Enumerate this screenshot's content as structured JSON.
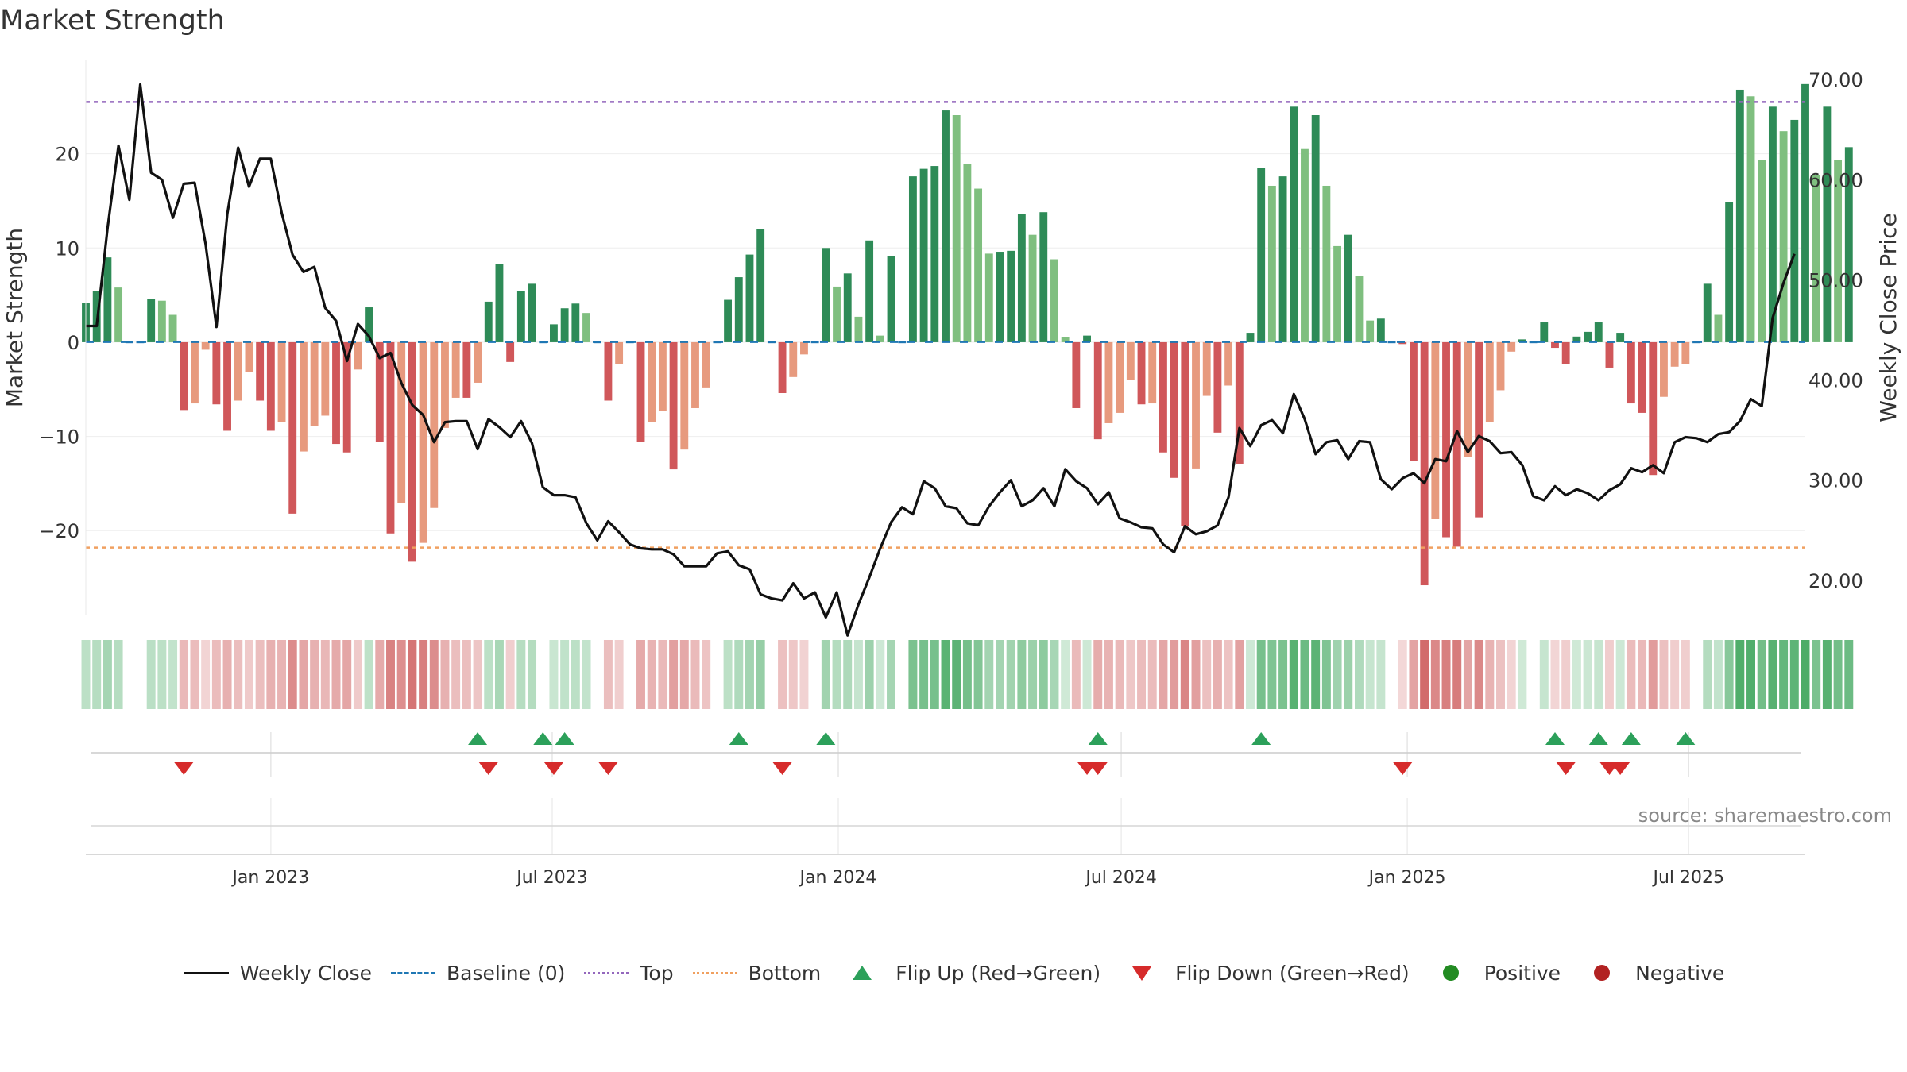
{
  "title": "Market Strength",
  "source": "source: sharemaestro.com",
  "colors": {
    "pos_dark": "#2e8b57",
    "pos_light": "#7fbf7f",
    "neg_dark": "#d0575a",
    "neg_light": "#e79a7e",
    "price_line": "#111111",
    "baseline": "#1f77b4",
    "top": "#9467bd",
    "bottom": "#f0a060",
    "flip_up": "#2ca05a",
    "flip_down": "#d62b2b",
    "positive": "#228b22",
    "negative": "#b22222",
    "heat_pos": "#2e9e4e",
    "heat_neg": "#c84a4a"
  },
  "legend": [
    {
      "key": "weekly_close",
      "label": "Weekly Close",
      "symbol": "line"
    },
    {
      "key": "baseline",
      "label": "Baseline (0)",
      "symbol": "dash"
    },
    {
      "key": "top",
      "label": "Top",
      "symbol": "dot-line"
    },
    {
      "key": "bottom",
      "label": "Bottom",
      "symbol": "dot-line"
    },
    {
      "key": "flip_up",
      "label": "Flip Up (Red→Green)",
      "symbol": "triangle-up"
    },
    {
      "key": "flip_down",
      "label": "Flip Down (Green→Red)",
      "symbol": "triangle-down"
    },
    {
      "key": "positive",
      "label": "Positive",
      "symbol": "circle"
    },
    {
      "key": "negative",
      "label": "Negative",
      "symbol": "circle"
    }
  ],
  "chart_data": {
    "type": "bar",
    "title": "Market Strength",
    "left_axis": {
      "label": "Market Strength",
      "range": [
        -29,
        30
      ],
      "ticks": [
        20,
        10,
        0,
        -10,
        -20
      ],
      "tick_labels": [
        "20",
        "10",
        "0",
        "−10",
        "−20"
      ]
    },
    "right_axis": {
      "label": "Weekly Close Price",
      "range": [
        16.5,
        72
      ],
      "ticks": [
        70,
        60,
        50,
        40,
        30,
        20
      ],
      "tick_labels": [
        "70.00",
        "60.00",
        "50.00",
        "40.00",
        "30.00",
        "20.00"
      ]
    },
    "x_axis": {
      "start": "2022-09-04",
      "end": "2025-09-14",
      "ticks": [
        "2023-01-01",
        "2023-07-01",
        "2024-01-01",
        "2024-07-01",
        "2025-01-01",
        "2025-07-01"
      ],
      "tick_labels": [
        "Jan 2023",
        "Jul 2023",
        "Jan 2024",
        "Jul 2024",
        "Jan 2025",
        "Jul 2025"
      ]
    },
    "top_level": 25.5,
    "bottom_level": -21.8,
    "baseline": 0,
    "series": [
      {
        "name": "Market Strength",
        "type": "bar",
        "first_week": "2022-09-04",
        "values": [
          4.2,
          5.4,
          9,
          5.8,
          0,
          0,
          4.6,
          4.4,
          2.9,
          -7.2,
          -6.5,
          -0.8,
          -6.6,
          -9.4,
          -6.2,
          -3.2,
          -6.2,
          -9.4,
          -8.5,
          -18.2,
          -11.6,
          -8.9,
          -7.8,
          -10.8,
          -11.7,
          -2.9,
          3.7,
          -10.6,
          -20.3,
          -17.1,
          -23.3,
          -21.3,
          -17.6,
          -9.1,
          -5.9,
          -5.9,
          -4.3,
          4.3,
          8.3,
          -2.1,
          5.4,
          6.2,
          0,
          1.9,
          3.6,
          4.1,
          3.1,
          0,
          -6.2,
          -2.3,
          0,
          -10.6,
          -8.5,
          -7.3,
          -13.5,
          -11.4,
          -7,
          -4.8,
          0,
          4.5,
          6.9,
          9.3,
          12,
          0,
          -5.4,
          -3.7,
          -1.3,
          0,
          10,
          5.9,
          7.3,
          2.7,
          10.8,
          0.7,
          9.1,
          0,
          17.6,
          18.4,
          18.7,
          24.6,
          24.1,
          18.9,
          16.3,
          9.4,
          9.6,
          9.7,
          13.6,
          11.4,
          13.8,
          8.8,
          0.5,
          -7,
          0.7,
          -10.3,
          -8.6,
          -7.5,
          -4,
          -6.6,
          -6.5,
          -11.7,
          -14.4,
          -19.5,
          -13.4,
          -5.7,
          -9.6,
          -4.6,
          -12.9,
          1,
          18.5,
          16.6,
          17.6,
          25,
          20.5,
          24.1,
          16.6,
          10.2,
          11.4,
          7,
          2.3,
          2.5,
          0,
          -0.2,
          -12.6,
          -25.8,
          -18.8,
          -20.7,
          -21.7,
          -12.2,
          -18.6,
          -8.5,
          -5.1,
          -1,
          0.3,
          0,
          2.1,
          -0.6,
          -2.3,
          0.6,
          1.1,
          2.1,
          -2.7,
          1,
          -6.5,
          -7.5,
          -14.1,
          -5.8,
          -2.6,
          -2.3,
          0,
          6.2,
          2.9,
          14.9,
          26.8,
          26.1,
          19.3,
          25,
          22.4,
          23.6,
          27.4,
          17.7,
          25,
          19.3,
          20.7
        ]
      },
      {
        "name": "Weekly Close",
        "type": "line",
        "first_week": "2022-09-04",
        "values": [
          45.4,
          45.4,
          55.2,
          63.4,
          58,
          69.5,
          60.7,
          60,
          56.2,
          59.6,
          59.7,
          53.6,
          45.3,
          56.6,
          63.2,
          59.3,
          62.1,
          62.1,
          56.7,
          52.5,
          50.8,
          51.3,
          47.2,
          45.9,
          41.9,
          45.6,
          44.4,
          42.2,
          42.7,
          39.7,
          37.5,
          36.5,
          33.8,
          35.8,
          35.9,
          35.9,
          33.1,
          36.1,
          35.3,
          34.3,
          35.9,
          33.7,
          29.3,
          28.5,
          28.5,
          28.3,
          25.7,
          24,
          25.9,
          24.8,
          23.6,
          23.2,
          23.1,
          23.1,
          22.6,
          21.4,
          21.4,
          21.4,
          22.7,
          22.9,
          21.5,
          21.1,
          18.6,
          18.2,
          18,
          19.7,
          18.2,
          18.8,
          16.3,
          18.8,
          14.5,
          17.6,
          20.3,
          23.2,
          25.8,
          27.3,
          26.6,
          29.9,
          29.2,
          27.4,
          27.2,
          25.7,
          25.5,
          27.4,
          28.8,
          30,
          27.4,
          28,
          29.2,
          27.4,
          31.1,
          29.9,
          29.2,
          27.6,
          28.8,
          26.2,
          25.8,
          25.3,
          25.2,
          23.6,
          22.8,
          25.4,
          24.6,
          24.9,
          25.5,
          28.3,
          35.2,
          33.4,
          35.5,
          36,
          34.7,
          38.6,
          36.1,
          32.6,
          33.8,
          34,
          32.1,
          33.9,
          33.8,
          30.1,
          29.1,
          30.2,
          30.7,
          29.7,
          32.1,
          31.9,
          34.9,
          32.8,
          34.4,
          33.9,
          32.7,
          32.8,
          31.5,
          28.4,
          28,
          29.4,
          28.5,
          29.1,
          28.7,
          28,
          29,
          29.6,
          31.2,
          30.8,
          31.5,
          30.7,
          33.8,
          34.3,
          34.2,
          33.8,
          34.6,
          34.8,
          35.9,
          38.1,
          37.4,
          46.2,
          49.7,
          52.6
        ]
      }
    ],
    "flips_up": [
      "2023-05-14",
      "2023-06-25",
      "2023-07-09",
      "2023-10-29",
      "2023-12-24",
      "2024-06-16",
      "2024-09-29",
      "2025-04-06",
      "2025-05-04",
      "2025-05-25",
      "2025-06-29"
    ],
    "flips_down": [
      "2022-11-06",
      "2023-05-21",
      "2023-07-02",
      "2023-08-06",
      "2023-11-26",
      "2024-06-09",
      "2024-06-16",
      "2024-12-29",
      "2025-04-13",
      "2025-05-11",
      "2025-05-18"
    ]
  }
}
